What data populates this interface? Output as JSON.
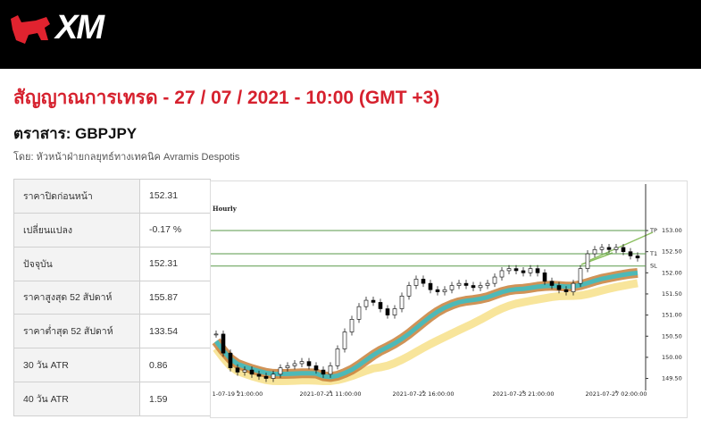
{
  "header": {
    "logo": "XM"
  },
  "title": "สัญญาณการเทรด - 27 / 07 / 2021 - 10:00 (GMT +3)",
  "instrument": "ตราสาร: GBPJPY",
  "author": "โดย: หัวหน้าฝ่ายกลยุทธ์ทางเทคนิค Avramis Despotis",
  "table": {
    "rows": [
      [
        "ราคาปิดก่อนหน้า",
        "152.31"
      ],
      [
        "เปลี่ยนแปลง",
        "-0.17 %"
      ],
      [
        "ปัจจุบัน",
        "152.31"
      ],
      [
        "ราคาสูงสุด 52 สัปดาห์",
        "155.87"
      ],
      [
        "ราคาต่ำสุด 52 สัปดาห์",
        "133.54"
      ],
      [
        "30 วัน ATR",
        "0.86"
      ],
      [
        "40 วัน ATR",
        "1.59"
      ]
    ]
  },
  "chart": {
    "type": "candlestick",
    "title": "Hourly",
    "categories": [
      null,
      null,
      null,
      "1-07-19 21:00:00",
      null,
      null,
      null,
      null,
      null,
      null,
      null,
      null,
      null,
      null,
      null,
      null,
      "2021-07-21 11:00:00",
      null,
      null,
      null,
      null,
      null,
      null,
      null,
      null,
      null,
      null,
      null,
      null,
      "2021-07-22 16:00:00",
      null,
      null,
      null,
      null,
      null,
      null,
      null,
      null,
      null,
      null,
      null,
      null,
      null,
      "2021-07-23 21:00:00",
      null,
      null,
      null,
      null,
      null,
      null,
      null,
      null,
      null,
      null,
      null,
      null,
      "2021-07-27 02:00:00",
      null,
      null,
      null
    ],
    "closes": [
      150.55,
      150.1,
      149.75,
      149.65,
      149.7,
      149.6,
      149.55,
      149.5,
      149.6,
      149.75,
      149.8,
      149.85,
      149.9,
      149.8,
      149.7,
      149.6,
      149.8,
      150.2,
      150.6,
      150.9,
      151.2,
      151.35,
      151.3,
      151.15,
      151.0,
      151.15,
      151.45,
      151.7,
      151.85,
      151.75,
      151.6,
      151.55,
      151.6,
      151.7,
      151.75,
      151.7,
      151.65,
      151.7,
      151.75,
      151.9,
      152.05,
      152.1,
      152.05,
      152.0,
      152.1,
      152.0,
      151.8,
      151.7,
      151.6,
      151.55,
      151.75,
      152.1,
      152.45,
      152.55,
      152.6,
      152.55,
      152.6,
      152.5,
      152.4,
      152.35
    ],
    "ylim": [
      149.3,
      154.1
    ],
    "yticks": [
      {
        "value": 149.5,
        "label": "149.50"
      },
      {
        "value": 150,
        "label": "150.00"
      },
      {
        "value": 150.5,
        "label": "150.50"
      },
      {
        "value": 151,
        "label": "151.00"
      },
      {
        "value": 151.5,
        "label": "151.50"
      },
      {
        "value": 152,
        "label": "152.00"
      },
      {
        "value": 152.5,
        "label": "152.50"
      },
      {
        "value": 153,
        "label": "153.00"
      }
    ],
    "levels": [
      {
        "label": "TP",
        "value": 153.0
      },
      {
        "label": "T1",
        "value": 152.45
      },
      {
        "label": "SL",
        "value": 152.16
      }
    ],
    "level_color": "#5a9a4a"
  }
}
